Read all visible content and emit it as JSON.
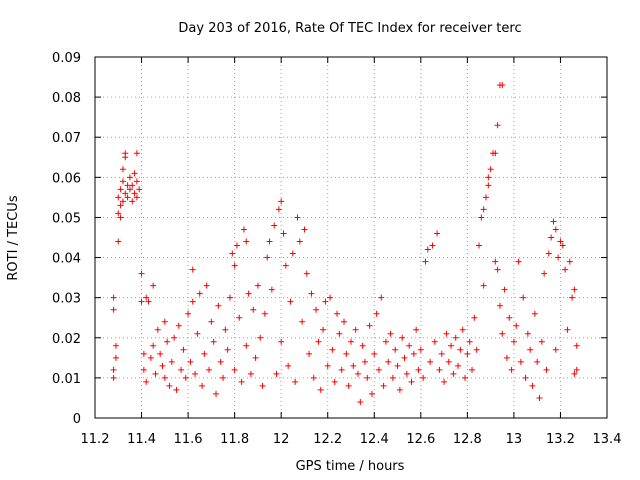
{
  "chart_data": {
    "type": "scatter",
    "title": "Day 203 of 2016, Rate Of TEC Index for receiver terc",
    "xlabel": "GPS time / hours",
    "ylabel": "ROTI / TECUs",
    "xlim": [
      11.2,
      13.4
    ],
    "ylim": [
      0,
      0.09
    ],
    "x_ticks": [
      "11.2",
      "11.4",
      "11.6",
      "11.8",
      "12",
      "12.2",
      "12.4",
      "12.6",
      "12.8",
      "13",
      "13.2",
      "13.4"
    ],
    "y_ticks": [
      "0",
      "0.01",
      "0.02",
      "0.03",
      "0.04",
      "0.05",
      "0.06",
      "0.07",
      "0.08",
      "0.09"
    ],
    "grid": true,
    "legend": "none",
    "marker": "plus",
    "color": "#ff0000",
    "series": [
      {
        "points": [
          [
            11.28,
            0.03
          ],
          [
            11.28,
            0.027
          ],
          [
            11.28,
            0.012
          ],
          [
            11.28,
            0.01
          ],
          [
            11.29,
            0.018
          ],
          [
            11.29,
            0.015
          ],
          [
            11.3,
            0.044
          ],
          [
            11.3,
            0.055
          ],
          [
            11.3,
            0.051
          ],
          [
            11.31,
            0.053
          ],
          [
            11.31,
            0.057
          ],
          [
            11.31,
            0.05
          ],
          [
            11.32,
            0.062
          ],
          [
            11.32,
            0.059
          ],
          [
            11.32,
            0.054
          ],
          [
            11.33,
            0.065
          ],
          [
            11.33,
            0.066
          ],
          [
            11.33,
            0.056
          ],
          [
            11.34,
            0.058
          ],
          [
            11.34,
            0.055
          ],
          [
            11.35,
            0.06
          ],
          [
            11.35,
            0.057
          ],
          [
            11.36,
            0.054
          ],
          [
            11.36,
            0.058
          ],
          [
            11.37,
            0.056
          ],
          [
            11.37,
            0.061
          ],
          [
            11.38,
            0.066
          ],
          [
            11.38,
            0.059
          ],
          [
            11.38,
            0.055
          ],
          [
            11.39,
            0.057
          ],
          [
            11.4,
            0.036
          ],
          [
            11.4,
            0.029
          ],
          [
            11.41,
            0.016
          ],
          [
            11.41,
            0.012
          ],
          [
            11.42,
            0.03
          ],
          [
            11.42,
            0.009
          ],
          [
            11.43,
            0.029
          ],
          [
            11.44,
            0.015
          ],
          [
            11.45,
            0.033
          ],
          [
            11.45,
            0.018
          ],
          [
            11.46,
            0.011
          ],
          [
            11.47,
            0.022
          ],
          [
            11.48,
            0.016
          ],
          [
            11.49,
            0.013
          ],
          [
            11.5,
            0.024
          ],
          [
            11.5,
            0.01
          ],
          [
            11.51,
            0.019
          ],
          [
            11.52,
            0.008
          ],
          [
            11.53,
            0.014
          ],
          [
            11.54,
            0.02
          ],
          [
            11.55,
            0.007
          ],
          [
            11.56,
            0.023
          ],
          [
            11.57,
            0.012
          ],
          [
            11.58,
            0.017
          ],
          [
            11.59,
            0.01
          ],
          [
            11.6,
            0.026
          ],
          [
            11.61,
            0.014
          ],
          [
            11.62,
            0.037
          ],
          [
            11.62,
            0.029
          ],
          [
            11.63,
            0.011
          ],
          [
            11.64,
            0.021
          ],
          [
            11.65,
            0.031
          ],
          [
            11.66,
            0.008
          ],
          [
            11.67,
            0.016
          ],
          [
            11.68,
            0.033
          ],
          [
            11.69,
            0.012
          ],
          [
            11.7,
            0.024
          ],
          [
            11.71,
            0.019
          ],
          [
            11.72,
            0.006
          ],
          [
            11.73,
            0.028
          ],
          [
            11.74,
            0.014
          ],
          [
            11.75,
            0.01
          ],
          [
            11.76,
            0.022
          ],
          [
            11.77,
            0.017
          ],
          [
            11.78,
            0.03
          ],
          [
            11.79,
            0.041
          ],
          [
            11.8,
            0.038
          ],
          [
            11.8,
            0.012
          ],
          [
            11.81,
            0.043
          ],
          [
            11.82,
            0.025
          ],
          [
            11.83,
            0.009
          ],
          [
            11.84,
            0.047
          ],
          [
            11.85,
            0.044
          ],
          [
            11.85,
            0.018
          ],
          [
            11.86,
            0.031
          ],
          [
            11.87,
            0.011
          ],
          [
            11.88,
            0.027
          ],
          [
            11.89,
            0.015
          ],
          [
            11.9,
            0.033
          ],
          [
            11.91,
            0.02
          ],
          [
            11.92,
            0.008
          ],
          [
            11.93,
            0.026
          ],
          [
            11.94,
            0.04
          ],
          [
            11.95,
            0.044
          ],
          [
            11.96,
            0.032
          ],
          [
            11.97,
            0.048
          ],
          [
            11.98,
            0.011
          ],
          [
            11.99,
            0.052
          ],
          [
            12.0,
            0.054
          ],
          [
            12.0,
            0.019
          ],
          [
            12.01,
            0.046
          ],
          [
            12.02,
            0.038
          ],
          [
            12.03,
            0.013
          ],
          [
            12.04,
            0.029
          ],
          [
            12.05,
            0.041
          ],
          [
            12.06,
            0.009
          ],
          [
            12.07,
            0.05
          ],
          [
            12.08,
            0.044
          ],
          [
            12.09,
            0.024
          ],
          [
            12.1,
            0.047
          ],
          [
            12.11,
            0.036
          ],
          [
            12.12,
            0.016
          ],
          [
            12.13,
            0.031
          ],
          [
            12.14,
            0.01
          ],
          [
            12.15,
            0.027
          ],
          [
            12.16,
            0.019
          ],
          [
            12.17,
            0.007
          ],
          [
            12.18,
            0.022
          ],
          [
            12.19,
            0.029
          ],
          [
            12.2,
            0.013
          ],
          [
            12.21,
            0.03
          ],
          [
            12.22,
            0.017
          ],
          [
            12.23,
            0.009
          ],
          [
            12.24,
            0.026
          ],
          [
            12.25,
            0.021
          ],
          [
            12.26,
            0.012
          ],
          [
            12.27,
            0.024
          ],
          [
            12.28,
            0.016
          ],
          [
            12.29,
            0.008
          ],
          [
            12.3,
            0.019
          ],
          [
            12.31,
            0.013
          ],
          [
            12.32,
            0.022
          ],
          [
            12.33,
            0.011
          ],
          [
            12.34,
            0.004
          ],
          [
            12.35,
            0.018
          ],
          [
            12.36,
            0.014
          ],
          [
            12.37,
            0.01
          ],
          [
            12.38,
            0.023
          ],
          [
            12.39,
            0.006
          ],
          [
            12.4,
            0.016
          ],
          [
            12.41,
            0.026
          ],
          [
            12.42,
            0.012
          ],
          [
            12.43,
            0.03
          ],
          [
            12.44,
            0.008
          ],
          [
            12.45,
            0.019
          ],
          [
            12.46,
            0.014
          ],
          [
            12.47,
            0.021
          ],
          [
            12.48,
            0.01
          ],
          [
            12.49,
            0.017
          ],
          [
            12.5,
            0.013
          ],
          [
            12.51,
            0.007
          ],
          [
            12.52,
            0.02
          ],
          [
            12.53,
            0.015
          ],
          [
            12.54,
            0.011
          ],
          [
            12.55,
            0.018
          ],
          [
            12.56,
            0.009
          ],
          [
            12.57,
            0.016
          ],
          [
            12.58,
            0.022
          ],
          [
            12.59,
            0.012
          ],
          [
            12.6,
            0.017
          ],
          [
            12.61,
            0.01
          ],
          [
            12.62,
            0.039
          ],
          [
            12.63,
            0.042
          ],
          [
            12.64,
            0.014
          ],
          [
            12.65,
            0.043
          ],
          [
            12.66,
            0.019
          ],
          [
            12.67,
            0.046
          ],
          [
            12.68,
            0.012
          ],
          [
            12.69,
            0.016
          ],
          [
            12.7,
            0.009
          ],
          [
            12.71,
            0.021
          ],
          [
            12.72,
            0.014
          ],
          [
            12.73,
            0.018
          ],
          [
            12.74,
            0.011
          ],
          [
            12.75,
            0.02
          ],
          [
            12.76,
            0.013
          ],
          [
            12.77,
            0.017
          ],
          [
            12.78,
            0.022
          ],
          [
            12.79,
            0.01
          ],
          [
            12.8,
            0.016
          ],
          [
            12.81,
            0.019
          ],
          [
            12.82,
            0.012
          ],
          [
            12.83,
            0.025
          ],
          [
            12.84,
            0.017
          ],
          [
            12.85,
            0.043
          ],
          [
            12.86,
            0.05
          ],
          [
            12.87,
            0.052
          ],
          [
            12.87,
            0.033
          ],
          [
            12.88,
            0.055
          ],
          [
            12.89,
            0.058
          ],
          [
            12.89,
            0.06
          ],
          [
            12.9,
            0.062
          ],
          [
            12.91,
            0.066
          ],
          [
            12.92,
            0.066
          ],
          [
            12.93,
            0.073
          ],
          [
            12.94,
            0.083
          ],
          [
            12.95,
            0.083
          ],
          [
            12.92,
            0.039
          ],
          [
            12.93,
            0.037
          ],
          [
            12.94,
            0.028
          ],
          [
            12.95,
            0.021
          ],
          [
            12.96,
            0.032
          ],
          [
            12.97,
            0.015
          ],
          [
            12.98,
            0.025
          ],
          [
            12.99,
            0.012
          ],
          [
            13.0,
            0.019
          ],
          [
            13.01,
            0.023
          ],
          [
            13.02,
            0.039
          ],
          [
            13.03,
            0.014
          ],
          [
            13.04,
            0.03
          ],
          [
            13.05,
            0.01
          ],
          [
            13.06,
            0.021
          ],
          [
            13.07,
            0.017
          ],
          [
            13.08,
            0.008
          ],
          [
            13.09,
            0.026
          ],
          [
            13.1,
            0.014
          ],
          [
            13.11,
            0.005
          ],
          [
            13.12,
            0.019
          ],
          [
            13.13,
            0.036
          ],
          [
            13.14,
            0.012
          ],
          [
            13.15,
            0.041
          ],
          [
            13.16,
            0.045
          ],
          [
            13.17,
            0.049
          ],
          [
            13.18,
            0.047
          ],
          [
            13.18,
            0.017
          ],
          [
            13.19,
            0.04
          ],
          [
            13.2,
            0.044
          ],
          [
            13.21,
            0.043
          ],
          [
            13.22,
            0.037
          ],
          [
            13.23,
            0.022
          ],
          [
            13.24,
            0.039
          ],
          [
            13.25,
            0.03
          ],
          [
            13.26,
            0.032
          ],
          [
            13.26,
            0.011
          ],
          [
            13.27,
            0.018
          ],
          [
            13.27,
            0.012
          ]
        ]
      }
    ]
  }
}
